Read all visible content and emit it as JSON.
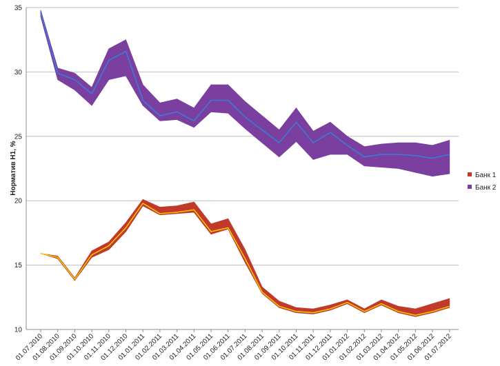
{
  "chart_data": {
    "type": "area",
    "ylabel": "Норматив Н1, %",
    "xlabel": "",
    "ylim": [
      10,
      35
    ],
    "yticks": [
      10,
      15,
      20,
      25,
      30,
      35
    ],
    "grid": true,
    "legend_position": "right",
    "categories": [
      "01.07.2010",
      "01.08.2010",
      "01.09.2010",
      "01.10.2010",
      "01.11.2010",
      "01.12.2010",
      "01.01.2011",
      "01.02.2011",
      "01.03.2011",
      "01.04.2011",
      "01.05.2011",
      "01.06.2011",
      "01.07.2011",
      "01.08.2011",
      "01.09.2011",
      "01.10.2011",
      "01.11.2011",
      "01.12.2011",
      "01.01.2012",
      "01.02.2012",
      "01.03.2012",
      "01.04.2012",
      "01.05.2012",
      "01.06.2012",
      "01.07.2012"
    ],
    "series": [
      {
        "name": "Банк 1",
        "color": "#c0392b",
        "line_color": "#f5c400",
        "lower": [
          15.9,
          15.5,
          13.8,
          15.6,
          16.2,
          17.6,
          19.6,
          18.9,
          19.0,
          19.1,
          17.4,
          17.8,
          15.2,
          12.8,
          11.7,
          11.3,
          11.2,
          11.5,
          12.0,
          11.3,
          11.9,
          11.3,
          11.0,
          11.3,
          11.7
        ],
        "mid": [
          15.9,
          15.6,
          13.9,
          15.8,
          16.5,
          17.9,
          19.8,
          19.0,
          19.1,
          19.3,
          17.6,
          17.9,
          15.5,
          12.9,
          11.8,
          11.4,
          11.3,
          11.6,
          12.1,
          11.4,
          12.0,
          11.4,
          11.1,
          11.4,
          11.8
        ],
        "upper": [
          15.9,
          15.7,
          14.0,
          16.1,
          16.8,
          18.3,
          20.1,
          19.5,
          19.6,
          19.9,
          18.2,
          18.6,
          16.2,
          13.3,
          12.2,
          11.7,
          11.6,
          11.9,
          12.3,
          11.6,
          12.3,
          11.8,
          11.6,
          12.0,
          12.4
        ]
      },
      {
        "name": "Банк 2",
        "color": "#7b3fa0",
        "line_color": "#3a7bd5",
        "lower": [
          34.3,
          29.4,
          28.6,
          27.4,
          29.4,
          29.7,
          27.4,
          26.2,
          26.3,
          25.7,
          26.9,
          26.8,
          25.6,
          24.5,
          23.4,
          24.6,
          23.2,
          23.6,
          23.6,
          22.7,
          22.6,
          22.5,
          22.2,
          21.9,
          22.1
        ],
        "mid": [
          34.6,
          29.9,
          29.4,
          28.3,
          30.9,
          31.6,
          27.8,
          26.6,
          26.9,
          26.2,
          27.8,
          27.8,
          26.5,
          25.5,
          24.5,
          26.1,
          24.5,
          25.3,
          24.3,
          23.4,
          23.6,
          23.6,
          23.5,
          23.3,
          23.6
        ],
        "upper": [
          34.8,
          30.3,
          29.9,
          28.8,
          31.8,
          32.5,
          29.0,
          27.6,
          27.9,
          27.2,
          29.0,
          29.0,
          27.7,
          26.6,
          25.5,
          27.2,
          25.4,
          26.1,
          25.0,
          24.2,
          24.4,
          24.5,
          24.5,
          24.3,
          24.7
        ]
      }
    ]
  }
}
